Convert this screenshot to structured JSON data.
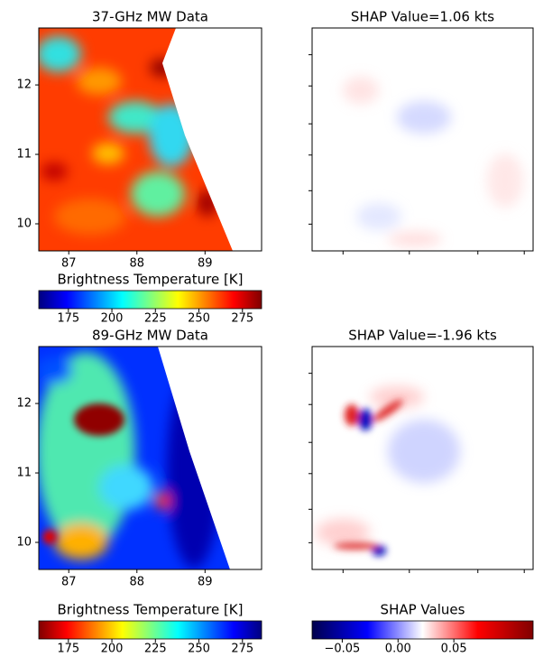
{
  "chart_data": [
    {
      "type": "heatmap",
      "title": "37-GHz MW Data",
      "xlim": [
        86.56,
        89.83
      ],
      "xticks": [
        87,
        88,
        89
      ],
      "ylim": [
        9.61,
        12.82
      ],
      "yticks": [
        10,
        11,
        12
      ],
      "colorbar": {
        "label": "Brightness Temperature [K]",
        "lim": [
          158,
          286
        ],
        "ticks": [
          175,
          200,
          225,
          250,
          275
        ],
        "colormap": [
          "#00007f",
          "#0000ff",
          "#007fff",
          "#00ffff",
          "#7fff7f",
          "#ffff00",
          "#ff7f00",
          "#ff0000",
          "#7f0000"
        ]
      }
    },
    {
      "type": "heatmap",
      "title": "SHAP Value=1.06 kts"
    },
    {
      "type": "heatmap",
      "title": "89-GHz MW Data",
      "xlim": [
        86.56,
        89.83
      ],
      "xticks": [
        87,
        88,
        89
      ],
      "ylim": [
        9.61,
        12.82
      ],
      "yticks": [
        10,
        11,
        12
      ],
      "colorbar": {
        "label": "Brightness Temperature [K]",
        "lim": [
          158,
          286
        ],
        "ticks": [
          175,
          200,
          225,
          250,
          275
        ],
        "colormap": [
          "#7f0000",
          "#ff0000",
          "#ff7f00",
          "#ffff00",
          "#7fff7f",
          "#00ffff",
          "#007fff",
          "#0000ff",
          "#00007f"
        ]
      }
    },
    {
      "type": "heatmap",
      "title": "SHAP Value=-1.96 kts",
      "colorbar": {
        "label": "SHAP Values",
        "lim": [
          -0.077,
          0.121
        ],
        "ticks": [
          {
            "value": -0.05,
            "label": "−0.05"
          },
          {
            "value": 0,
            "label": "0.00"
          },
          0.05
        ],
        "colormap": [
          "#00004c",
          "#0000ff",
          "#ffffff",
          "#ff0000",
          "#800000"
        ]
      }
    }
  ]
}
